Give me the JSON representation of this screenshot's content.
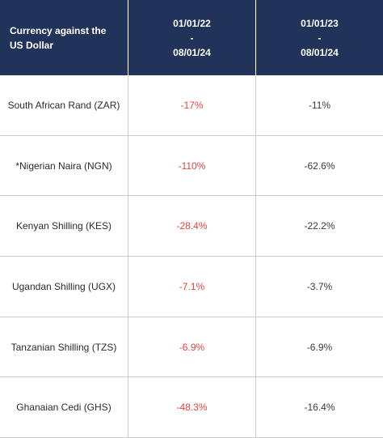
{
  "header": {
    "col1": "Currency against the US Dollar",
    "col2": {
      "start": "01/01/22",
      "sep": "-",
      "end": "08/01/24"
    },
    "col3": {
      "start": "01/01/23",
      "sep": "-",
      "end": "08/01/24"
    }
  },
  "rows": [
    {
      "currency": "South African Rand (ZAR)",
      "change_2022": "-17%",
      "change_2023": "-11%"
    },
    {
      "currency": "*Nigerian Naira (NGN)",
      "change_2022": "-110%",
      "change_2023": "-62.6%"
    },
    {
      "currency": "Kenyan Shilling (KES)",
      "change_2022": "-28.4%",
      "change_2023": "-22.2%"
    },
    {
      "currency": "Ugandan Shilling (UGX)",
      "change_2022": "-7.1%",
      "change_2023": "-3.7%"
    },
    {
      "currency": "Tanzanian Shilling (TZS)",
      "change_2022": "-6.9%",
      "change_2023": "-6.9%"
    },
    {
      "currency": "Ghanaian Cedi (GHS)",
      "change_2022": "-48.3%",
      "change_2023": "-16.4%"
    }
  ],
  "colors": {
    "header_bg": "#22335a",
    "negative_text": "#e0463b"
  }
}
